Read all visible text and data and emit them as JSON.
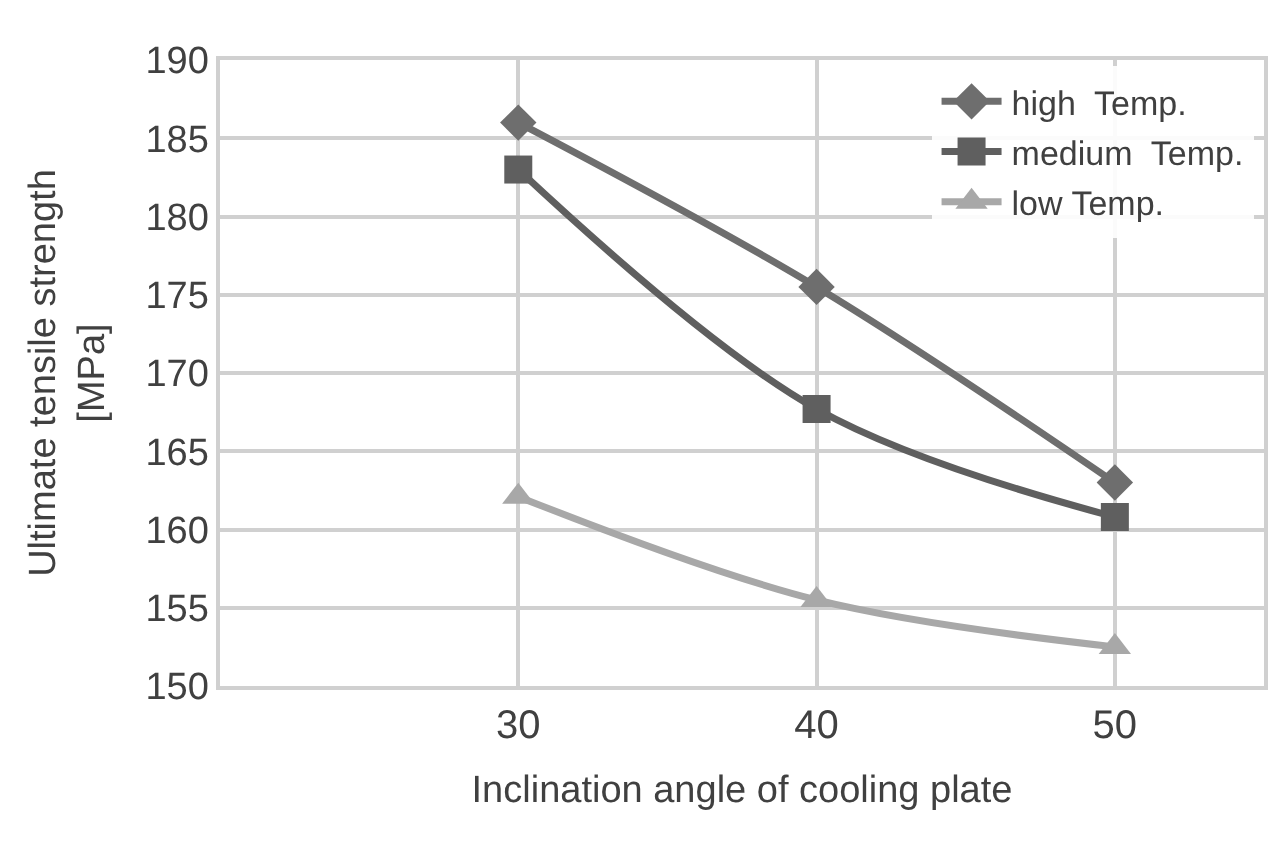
{
  "chart_data": {
    "type": "line",
    "xlabel": "Inclination angle of cooling plate",
    "ylabel": "Ultimate tensile strength\n[MPa]",
    "x": [
      30,
      40,
      50
    ],
    "series": [
      {
        "name": "high  Temp.",
        "color": "#6e6e6e",
        "marker": "diamond",
        "values": [
          186.0,
          175.5,
          163.0
        ]
      },
      {
        "name": "medium  Temp.",
        "color": "#5f5f5f",
        "marker": "square",
        "values": [
          183.0,
          167.7,
          160.8
        ]
      },
      {
        "name": "low Temp.",
        "color": "#a8a8a8",
        "marker": "triangle",
        "values": [
          162.1,
          155.5,
          152.5
        ]
      }
    ],
    "xlim": [
      20,
      55
    ],
    "xticks": [
      30,
      40,
      50
    ],
    "ylim": [
      150,
      190
    ],
    "yticks": [
      150,
      155,
      160,
      165,
      170,
      175,
      180,
      185,
      190
    ],
    "grid": true,
    "legend": "top right"
  }
}
